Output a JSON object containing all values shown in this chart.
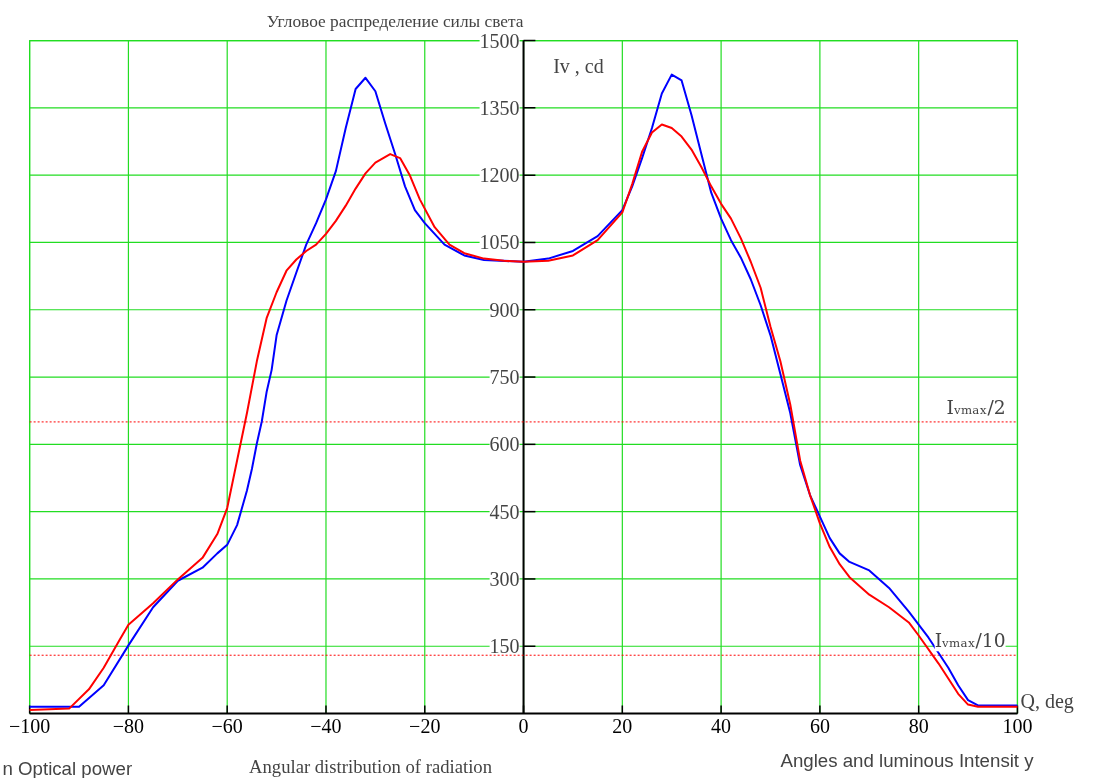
{
  "chart_data": {
    "type": "line",
    "title": "Угловое распределение силы света",
    "xlabel": "Q, deg",
    "ylabel": "Iv , cd",
    "xlim": [
      -100,
      100
    ],
    "ylim": [
      0,
      1500
    ],
    "xticks": [
      -100,
      -80,
      -60,
      -40,
      -20,
      0,
      20,
      40,
      60,
      80,
      100
    ],
    "yticks": [
      150,
      300,
      450,
      600,
      750,
      900,
      1050,
      1200,
      1350,
      1500
    ],
    "grid": true,
    "marker": "none",
    "line_style": "solid",
    "series": [
      {
        "color": "#0000ff",
        "x": [
          -100,
          -90,
          -85,
          -80,
          -75,
          -70,
          -65,
          -62,
          -60,
          -58,
          -56,
          -55,
          -54,
          -53,
          -52,
          -51,
          -50,
          -48,
          -46,
          -44,
          -42,
          -40,
          -38,
          -36,
          -34,
          -32,
          -30,
          -28,
          -26,
          -24,
          -22,
          -20,
          -16,
          -12,
          -8,
          0,
          5,
          10,
          15,
          20,
          22,
          24,
          26,
          28,
          30,
          32,
          34,
          36,
          38,
          40,
          42,
          44,
          46,
          48,
          50,
          52,
          54,
          56,
          58,
          60,
          62,
          64,
          66,
          70,
          74,
          78,
          82,
          86,
          88,
          90,
          92,
          100
        ],
        "values": [
          15,
          15,
          63,
          152,
          237,
          296,
          325,
          357,
          376,
          420,
          497,
          545,
          602,
          651,
          718,
          766,
          843,
          920,
          983,
          1045,
          1093,
          1146,
          1209,
          1305,
          1392,
          1417,
          1387,
          1315,
          1247,
          1175,
          1122,
          1093,
          1045,
          1021,
          1011,
          1007,
          1014,
          1031,
          1064,
          1122,
          1175,
          1238,
          1305,
          1382,
          1424,
          1411,
          1334,
          1247,
          1161,
          1103,
          1055,
          1016,
          968,
          910,
          843,
          757,
          670,
          554,
          487,
          439,
          391,
          357,
          338,
          319,
          280,
          227,
          169,
          102,
          63,
          30,
          18,
          18
        ]
      },
      {
        "color": "#ff0000",
        "x": [
          -100,
          -92,
          -88,
          -85,
          -82,
          -80,
          -75,
          -70,
          -65,
          -62,
          -60,
          -58,
          -56,
          -54,
          -52,
          -50,
          -48,
          -46,
          -44,
          -42,
          -40,
          -38,
          -36,
          -34,
          -32,
          -30,
          -27,
          -25,
          -23,
          -21,
          -18,
          -15,
          -12,
          -8,
          -4,
          0,
          5,
          10,
          15,
          20,
          22,
          24,
          26,
          28,
          30,
          32,
          34,
          36,
          38,
          40,
          42,
          44,
          46,
          48,
          50,
          52,
          54,
          56,
          58,
          60,
          62,
          64,
          66,
          70,
          74,
          78,
          80,
          84,
          88,
          90,
          92,
          100
        ],
        "values": [
          8,
          11,
          54,
          102,
          160,
          198,
          246,
          299,
          347,
          400,
          458,
          564,
          670,
          785,
          882,
          939,
          987,
          1012,
          1031,
          1045,
          1069,
          1098,
          1132,
          1170,
          1204,
          1228,
          1247,
          1238,
          1199,
          1146,
          1084,
          1045,
          1026,
          1014,
          1009,
          1007,
          1009,
          1021,
          1055,
          1117,
          1180,
          1252,
          1295,
          1313,
          1305,
          1286,
          1257,
          1218,
          1175,
          1136,
          1103,
          1059,
          1007,
          949,
          862,
          785,
          689,
          564,
          487,
          424,
          371,
          333,
          304,
          265,
          237,
          203,
          174,
          112,
          44,
          20,
          15,
          15
        ]
      }
    ],
    "ref_lines": [
      {
        "axis": "y",
        "value": 650,
        "label": "Iᵥₘₐₓ/2",
        "color": "#ff0000",
        "line_style": "dashed"
      },
      {
        "axis": "y",
        "value": 130,
        "label": "Iᵥₘₐₓ/10",
        "color": "#ff0000",
        "line_style": "dashed"
      }
    ],
    "annotations": [
      "Angular distribution of radiation",
      "Angles and luminous Intensit y",
      "n Optical power"
    ]
  }
}
